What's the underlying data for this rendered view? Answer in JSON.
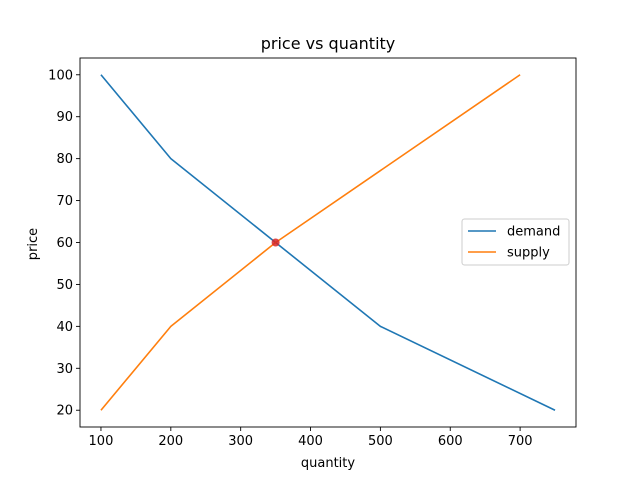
{
  "chart_data": {
    "type": "line",
    "title": "price vs quantity",
    "xlabel": "quantity",
    "ylabel": "price",
    "xlim": [
      70,
      780
    ],
    "ylim": [
      16,
      104
    ],
    "xticks": [
      100,
      200,
      300,
      400,
      500,
      600,
      700
    ],
    "yticks": [
      20,
      30,
      40,
      50,
      60,
      70,
      80,
      90,
      100
    ],
    "grid": false,
    "legend_position": "center-right",
    "series": [
      {
        "name": "demand",
        "color": "#1f77b4",
        "x": [
          100,
          200,
          350,
          500,
          750
        ],
        "y": [
          100,
          80,
          60,
          40,
          20
        ]
      },
      {
        "name": "supply",
        "color": "#ff7f0e",
        "x": [
          100,
          200,
          350,
          700
        ],
        "y": [
          20,
          40,
          60,
          100
        ]
      }
    ],
    "markers": [
      {
        "x": 350,
        "y": 60,
        "color": "#d62728"
      }
    ]
  }
}
